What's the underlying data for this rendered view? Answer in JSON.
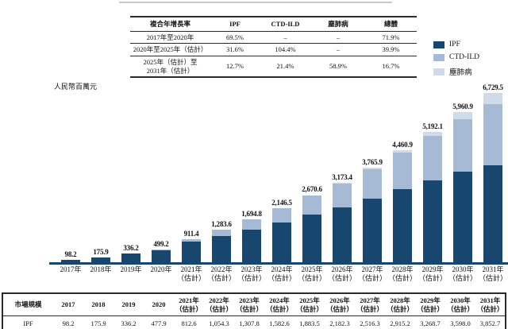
{
  "chart_data": {
    "type": "bar",
    "stacked": true,
    "title": "",
    "xlabel": "",
    "ylabel": "人民幣百萬元",
    "ylim": [
      0,
      6729.5
    ],
    "grid": false,
    "legend_position": "right",
    "categories": [
      "2017年",
      "2018年",
      "2019年",
      "2020年",
      "2021年\n（估計）",
      "2022年\n（估計）",
      "2023年\n（估計）",
      "2024年\n（估計）",
      "2025年\n（估計）",
      "2026年\n（估計）",
      "2027年\n（估計）",
      "2028年\n（估計）",
      "2029年\n（估計）",
      "2030年\n（估計）",
      "2031年\n（估計）"
    ],
    "series": [
      {
        "name": "IPF",
        "color": "#17476f",
        "values": [
          98.2,
          175.9,
          336.2,
          477.9,
          812.6,
          1054.3,
          1307.8,
          1582.6,
          1883.5,
          2182.3,
          2516.3,
          2915.2,
          3268.7,
          3598.0,
          3852.7
        ]
      },
      {
        "name": "CTD-ILD",
        "color": "#a6b9d5",
        "values": [
          0,
          0,
          0,
          21.3,
          98.8,
          229.3,
          387.0,
          563.9,
          760.1,
          948.2,
          1181.4,
          1437.3,
          1751.2,
          2089.2,
          2441.9
        ]
      },
      {
        "name": "塵肺病",
        "color": "#d0dbe9",
        "values": [
          0,
          0,
          0,
          0,
          0,
          0,
          0,
          0,
          27.0,
          42.9,
          68.2,
          108.4,
          172.2,
          273.7,
          434.9
        ]
      }
    ],
    "totals": [
      98.2,
      175.9,
      336.2,
      499.2,
      911.4,
      1283.6,
      1694.8,
      2146.5,
      2670.6,
      3173.4,
      3765.9,
      4460.9,
      5192.1,
      5960.9,
      6729.5
    ],
    "total_labels": [
      "98.2",
      "175.9",
      "336.2",
      "499.2",
      "911.4",
      "1,283.6",
      "1,694.8",
      "2,146.5",
      "2,670.6",
      "3,173.4",
      "3,765.9",
      "4,460.9",
      "5,192.1",
      "5,960.9",
      "6,729.5"
    ]
  },
  "colors": {
    "axis": "#17476f",
    "table_border": "#2b2b2b"
  },
  "cagr_table": {
    "headers": [
      "複合年增長率",
      "IPF",
      "CTD-ILD",
      "塵肺病",
      "總體"
    ],
    "rows": [
      {
        "label": "2017年至2020年",
        "values": [
          "69.5%",
          "–",
          "–",
          "71.9%"
        ]
      },
      {
        "label": "2020年至2025年（估計）",
        "values": [
          "31.6%",
          "104.4%",
          "–",
          "39.9%"
        ]
      },
      {
        "label": "2025年（估計）至\n2031年（估計）",
        "values": [
          "12.7%",
          "21.4%",
          "58.9%",
          "16.7%"
        ]
      }
    ]
  },
  "market_table": {
    "corner_header": "市場規模",
    "col_headers": [
      "2017",
      "2018",
      "2019",
      "2020",
      "2021年\n（估計）",
      "2022年\n（估計）",
      "2023年\n（估計）",
      "2024年\n（估計）",
      "2025年\n（估計）",
      "2026年\n（估計）",
      "2027年\n（估計）",
      "2028年\n（估計）",
      "2029年\n（估計）",
      "2030年\n（估計）",
      "2031年\n（估計）"
    ],
    "rows": [
      {
        "label": "IPF",
        "values": [
          "98.2",
          "175.9",
          "336.2",
          "477.9",
          "812.6",
          "1,054.3",
          "1,307.8",
          "1,582.6",
          "1,883.5",
          "2,182.3",
          "2,516.3",
          "2,915.2",
          "3,268.7",
          "3,598.0",
          "3,852.7"
        ]
      }
    ]
  }
}
